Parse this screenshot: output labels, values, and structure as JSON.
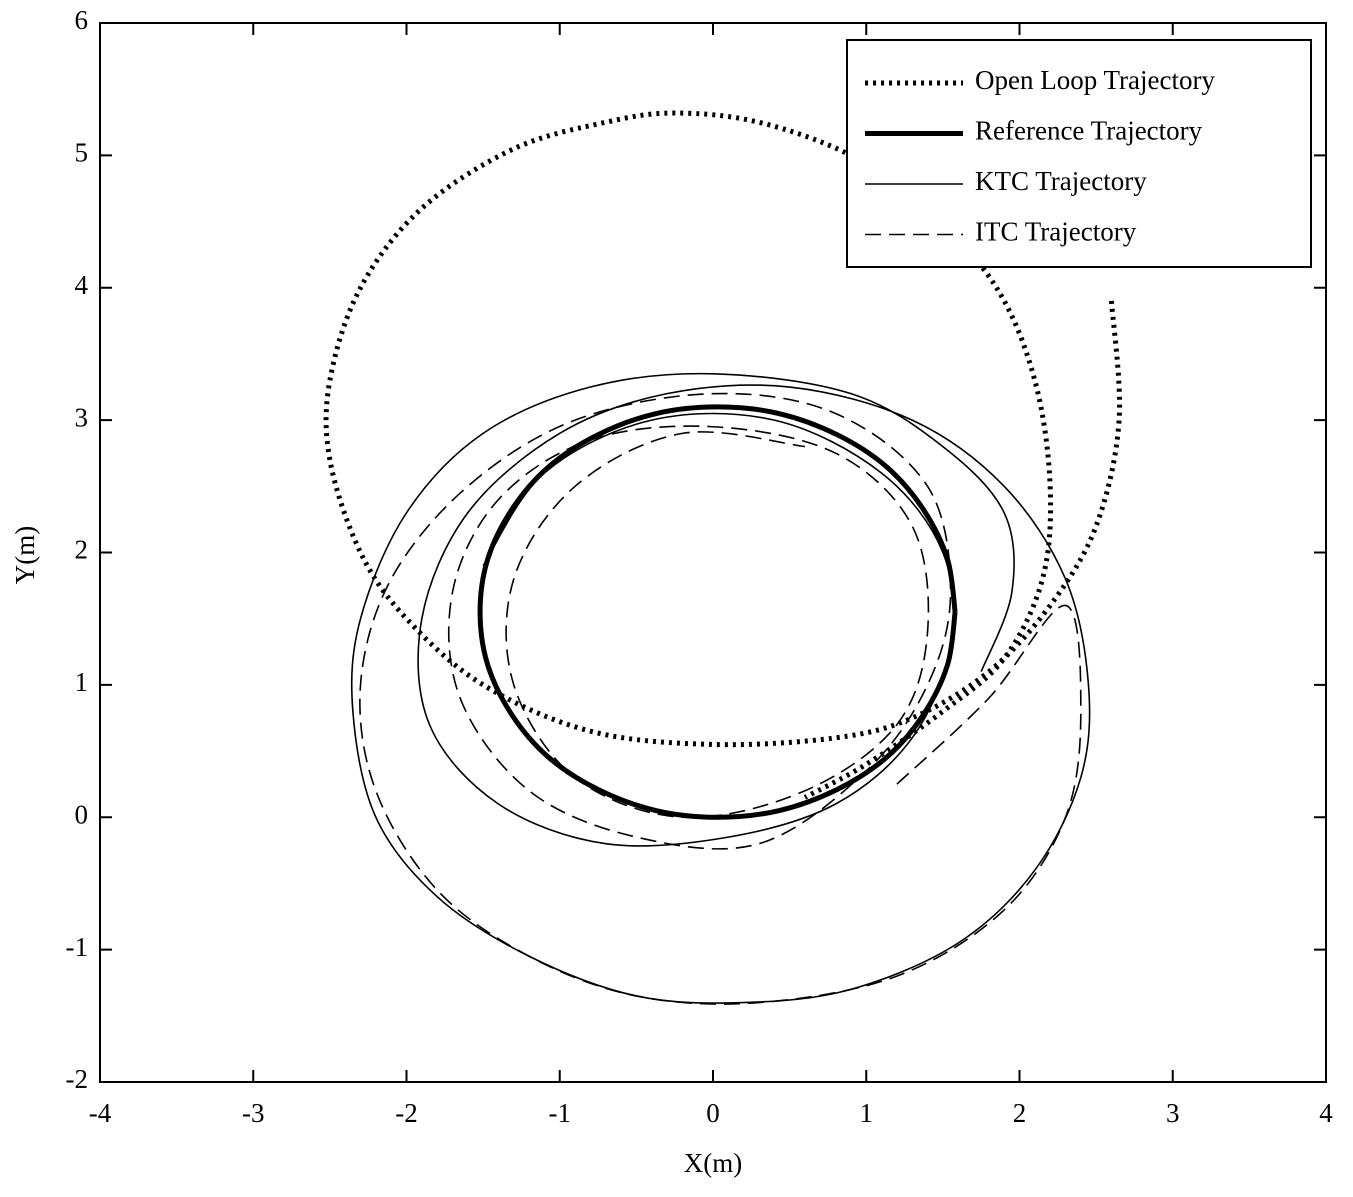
{
  "chart_data": {
    "type": "line",
    "xlabel": "X(m)",
    "ylabel": "Y(m)",
    "xlim": [
      -4,
      4
    ],
    "ylim": [
      -2,
      6
    ],
    "xticks": [
      -4,
      -3,
      -2,
      -1,
      0,
      1,
      2,
      3,
      4
    ],
    "yticks": [
      -2,
      -1,
      0,
      1,
      2,
      3,
      4,
      5,
      6
    ],
    "legend": "upper right",
    "series": [
      {
        "name": "Open Loop Trajectory",
        "color": "#000000",
        "line_style": "dotted",
        "x": [
          2.6,
          2.65,
          2.5,
          2.2,
          1.8,
          1.3,
          0.8,
          0.0,
          -0.8,
          -1.5,
          -2.0,
          -2.3,
          -2.5,
          -2.5,
          -2.3,
          -1.9,
          -1.3,
          -0.7,
          -0.25,
          0.3,
          0.9,
          1.4,
          1.85,
          2.1,
          2.2,
          2.15,
          1.9,
          1.5,
          1.0,
          0.6
        ],
        "y": [
          3.9,
          3.0,
          2.2,
          1.6,
          1.1,
          0.75,
          0.6,
          0.55,
          0.65,
          1.0,
          1.5,
          2.0,
          2.7,
          3.3,
          4.0,
          4.6,
          5.05,
          5.25,
          5.32,
          5.25,
          5.0,
          4.6,
          4.0,
          3.3,
          2.5,
          1.8,
          1.2,
          0.8,
          0.4,
          0.15
        ]
      },
      {
        "name": "Reference Trajectory",
        "color": "#000000",
        "line_style": "thick",
        "x": [
          1.58,
          1.53,
          1.37,
          1.13,
          0.81,
          0.43,
          0.03,
          -0.37,
          -0.75,
          -1.07,
          -1.31,
          -1.47,
          -1.52,
          -1.47,
          -1.31,
          -1.07,
          -0.75,
          -0.37,
          0.03,
          0.43,
          0.81,
          1.13,
          1.37,
          1.53,
          1.58
        ],
        "y": [
          1.55,
          1.95,
          2.33,
          2.65,
          2.89,
          3.05,
          3.1,
          3.05,
          2.89,
          2.65,
          2.33,
          1.95,
          1.55,
          1.15,
          0.77,
          0.45,
          0.21,
          0.05,
          0.0,
          0.05,
          0.21,
          0.45,
          0.77,
          1.15,
          1.55
        ]
      },
      {
        "name": "KTC Trajectory",
        "color": "#000000",
        "line_style": "solid",
        "x": [
          1.75,
          1.95,
          1.9,
          1.5,
          0.9,
          0.0,
          -0.8,
          -1.5,
          -2.0,
          -2.3,
          -2.35,
          -2.2,
          -1.8,
          -1.2,
          -0.5,
          0.2,
          0.9,
          1.6,
          2.1,
          2.4,
          2.45,
          2.3,
          1.9,
          1.3,
          0.5,
          -0.3,
          -1.0,
          -1.6,
          -1.9,
          -1.85,
          -1.4,
          -0.7,
          0.1,
          0.8,
          1.3,
          1.55,
          1.5,
          1.1,
          0.4,
          -0.4,
          -1.1,
          -1.5
        ],
        "y": [
          1.1,
          1.7,
          2.3,
          2.8,
          3.2,
          3.35,
          3.25,
          2.9,
          2.3,
          1.5,
          0.8,
          0.0,
          -0.6,
          -1.05,
          -1.35,
          -1.4,
          -1.3,
          -0.95,
          -0.4,
          0.3,
          1.0,
          1.8,
          2.5,
          3.0,
          3.25,
          3.2,
          2.9,
          2.3,
          1.5,
          0.7,
          0.1,
          -0.2,
          -0.15,
          0.1,
          0.6,
          1.3,
          2.0,
          2.6,
          3.0,
          3.0,
          2.6,
          1.9
        ]
      },
      {
        "name": "ITC Trajectory",
        "color": "#000000",
        "line_style": "dashed",
        "x": [
          1.2,
          1.8,
          2.3,
          2.4,
          2.3,
          1.9,
          1.2,
          0.3,
          -0.5,
          -1.2,
          -1.8,
          -2.2,
          -2.3,
          -2.1,
          -1.6,
          -0.9,
          0.0,
          0.8,
          1.4,
          1.55,
          1.4,
          1.0,
          0.3,
          -0.5,
          -1.2,
          -1.65,
          -1.7,
          -1.4,
          -0.8,
          0.0,
          0.8,
          1.3,
          1.4,
          1.2,
          0.6,
          -0.2,
          -0.9,
          -1.3,
          -1.3,
          -0.9,
          -0.2,
          0.6
        ],
        "y": [
          0.25,
          0.9,
          1.6,
          0.8,
          0.0,
          -0.7,
          -1.2,
          -1.4,
          -1.35,
          -1.05,
          -0.55,
          0.2,
          1.0,
          1.8,
          2.5,
          3.0,
          3.2,
          3.05,
          2.5,
          1.7,
          1.0,
          0.35,
          -0.2,
          -0.15,
          0.2,
          0.9,
          1.7,
          2.4,
          2.85,
          2.95,
          2.75,
          2.2,
          1.4,
          0.7,
          0.2,
          0.0,
          0.3,
          1.0,
          1.8,
          2.5,
          2.9,
          2.8
        ]
      }
    ]
  }
}
